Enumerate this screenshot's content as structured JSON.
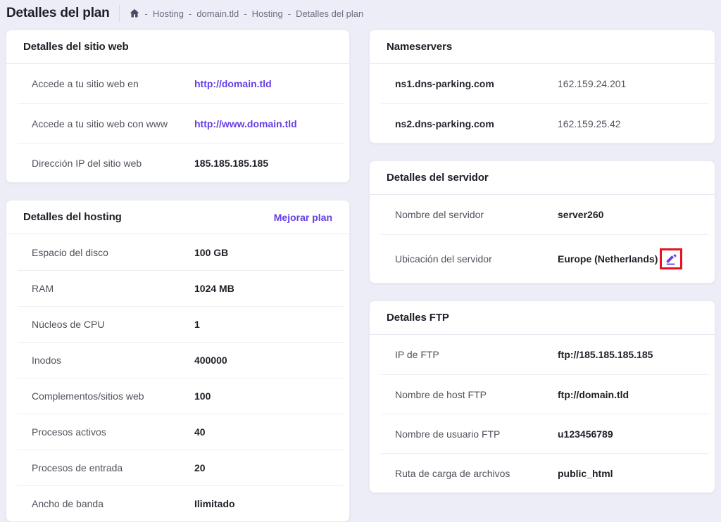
{
  "colors": {
    "accent": "#673de6",
    "highlight_red": "#e81123",
    "background": "#ededf7"
  },
  "page": {
    "title": "Detalles del plan"
  },
  "breadcrumb": {
    "home_icon": "home-icon",
    "separator": "-",
    "items": [
      "Hosting",
      "domain.tld",
      "Hosting",
      "Detalles del plan"
    ]
  },
  "cards": {
    "website": {
      "title": "Detalles del sitio web",
      "rows": [
        {
          "label": "Accede a tu sitio web en",
          "value": "http://domain.tld",
          "type": "link"
        },
        {
          "label": "Accede a tu sitio web con www",
          "value": "http://www.domain.tld",
          "type": "link"
        },
        {
          "label": "Dirección IP del sitio web",
          "value": "185.185.185.185"
        }
      ]
    },
    "hosting": {
      "title": "Detalles del hosting",
      "action": "Mejorar plan",
      "rows": [
        {
          "label": "Espacio del disco",
          "value": "100 GB"
        },
        {
          "label": "RAM",
          "value": "1024 MB"
        },
        {
          "label": "Núcleos de CPU",
          "value": "1"
        },
        {
          "label": "Inodos",
          "value": "400000"
        },
        {
          "label": "Complementos/sitios web",
          "value": "100"
        },
        {
          "label": "Procesos activos",
          "value": "40"
        },
        {
          "label": "Procesos de entrada",
          "value": "20"
        },
        {
          "label": "Ancho de banda",
          "value": "Ilimitado"
        }
      ]
    },
    "nameservers": {
      "title": "Nameservers",
      "label_bold": true,
      "value_regular": true,
      "rows": [
        {
          "label": "ns1.dns-parking.com",
          "value": "162.159.24.201"
        },
        {
          "label": "ns2.dns-parking.com",
          "value": "162.159.25.42"
        }
      ]
    },
    "server": {
      "title": "Detalles del servidor",
      "rows": [
        {
          "label": "Nombre del servidor",
          "value": "server260"
        },
        {
          "label": "Ubicación del servidor",
          "value": "Europe (Netherlands)",
          "editable": true,
          "edit_icon": "pencil-icon"
        }
      ]
    },
    "ftp": {
      "title": "Detalles FTP",
      "rows": [
        {
          "label": "IP de FTP",
          "value": "ftp://185.185.185.185"
        },
        {
          "label": "Nombre de host FTP",
          "value": "ftp://domain.tld"
        },
        {
          "label": "Nombre de usuario FTP",
          "value": "u123456789"
        },
        {
          "label": "Ruta de carga de archivos",
          "value": "public_html"
        }
      ]
    }
  }
}
